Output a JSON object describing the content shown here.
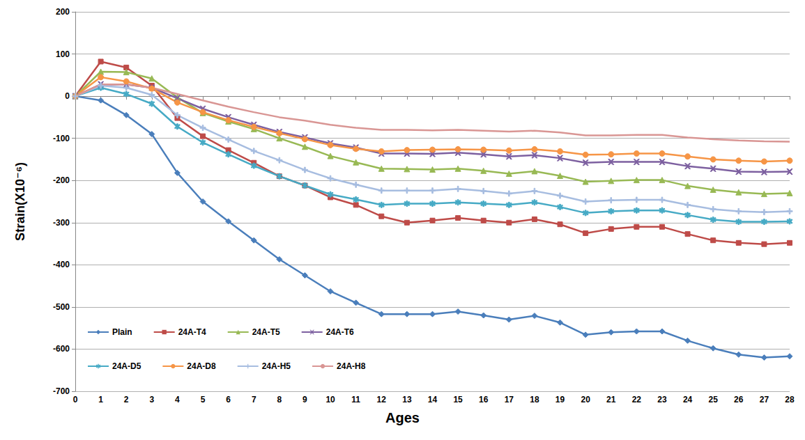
{
  "chart_data": {
    "type": "line",
    "x_label": "Ages",
    "y_label": "Strain(X10⁻⁶)",
    "x": [
      0,
      1,
      2,
      3,
      4,
      5,
      6,
      7,
      8,
      9,
      10,
      11,
      12,
      13,
      14,
      15,
      16,
      17,
      18,
      19,
      20,
      21,
      22,
      23,
      24,
      25,
      26,
      27,
      28
    ],
    "xlim": [
      0,
      28
    ],
    "xticks": [
      0,
      1,
      2,
      3,
      4,
      5,
      6,
      7,
      8,
      9,
      10,
      11,
      12,
      13,
      14,
      15,
      16,
      17,
      18,
      19,
      20,
      21,
      22,
      23,
      24,
      25,
      26,
      27,
      28
    ],
    "ylim": [
      -700,
      200
    ],
    "yticks": [
      -700,
      -600,
      -500,
      -400,
      -300,
      -200,
      -100,
      0,
      100,
      200
    ],
    "grid": true,
    "legend": "lower left",
    "series": [
      {
        "name": "Plain",
        "color": "#4a7ebb",
        "marker": "diamond",
        "values": [
          0,
          -10,
          -45,
          -90,
          -182,
          -250,
          -297,
          -342,
          -387,
          -425,
          -463,
          -490,
          -517,
          -517,
          -517,
          -511,
          -520,
          -530,
          -521,
          -537,
          -566,
          -560,
          -558,
          -558,
          -580,
          -598,
          -613,
          -620,
          -617
        ]
      },
      {
        "name": "24A-T4",
        "color": "#be4b48",
        "marker": "square",
        "values": [
          0,
          82,
          68,
          25,
          -52,
          -95,
          -128,
          -158,
          -190,
          -212,
          -240,
          -258,
          -285,
          -300,
          -295,
          -289,
          -295,
          -300,
          -292,
          -304,
          -325,
          -315,
          -310,
          -310,
          -327,
          -342,
          -348,
          -351,
          -348
        ]
      },
      {
        "name": "24A-T5",
        "color": "#98b954",
        "marker": "triangle",
        "values": [
          0,
          58,
          57,
          42,
          -3,
          -40,
          -60,
          -78,
          -100,
          -120,
          -142,
          -157,
          -172,
          -173,
          -174,
          -172,
          -177,
          -184,
          -178,
          -189,
          -203,
          -201,
          -199,
          -199,
          -213,
          -222,
          -228,
          -232,
          -230
        ]
      },
      {
        "name": "24A-T6",
        "color": "#7d60a0",
        "marker": "x",
        "values": [
          0,
          28,
          28,
          20,
          -5,
          -30,
          -50,
          -68,
          -85,
          -98,
          -112,
          -122,
          -136,
          -136,
          -137,
          -134,
          -138,
          -143,
          -140,
          -147,
          -158,
          -156,
          -156,
          -156,
          -166,
          -172,
          -179,
          -180,
          -179
        ]
      },
      {
        "name": "24A-D5",
        "color": "#46aac5",
        "marker": "star",
        "values": [
          0,
          20,
          5,
          -18,
          -72,
          -110,
          -138,
          -165,
          -190,
          -212,
          -233,
          -245,
          -258,
          -255,
          -255,
          -252,
          -255,
          -258,
          -252,
          -263,
          -277,
          -273,
          -271,
          -271,
          -282,
          -293,
          -298,
          -298,
          -297
        ]
      },
      {
        "name": "24A-D8",
        "color": "#f69546",
        "marker": "circle",
        "values": [
          0,
          45,
          35,
          18,
          -15,
          -38,
          -57,
          -73,
          -88,
          -102,
          -116,
          -125,
          -131,
          -128,
          -127,
          -126,
          -127,
          -129,
          -126,
          -131,
          -139,
          -138,
          -136,
          -136,
          -143,
          -150,
          -153,
          -155,
          -153
        ]
      },
      {
        "name": "24A-H5",
        "color": "#a7bde0",
        "marker": "plus",
        "values": [
          0,
          25,
          20,
          3,
          -45,
          -75,
          -103,
          -130,
          -152,
          -175,
          -195,
          -210,
          -224,
          -224,
          -224,
          -220,
          -225,
          -231,
          -225,
          -236,
          -250,
          -247,
          -246,
          -246,
          -258,
          -268,
          -273,
          -275,
          -273
        ]
      },
      {
        "name": "24A-H8",
        "color": "#d99694",
        "marker": "none",
        "values": [
          0,
          28,
          28,
          20,
          5,
          -10,
          -25,
          -38,
          -50,
          -58,
          -68,
          -75,
          -80,
          -80,
          -81,
          -80,
          -82,
          -84,
          -82,
          -86,
          -93,
          -93,
          -92,
          -92,
          -98,
          -102,
          -105,
          -107,
          -108
        ]
      }
    ]
  }
}
